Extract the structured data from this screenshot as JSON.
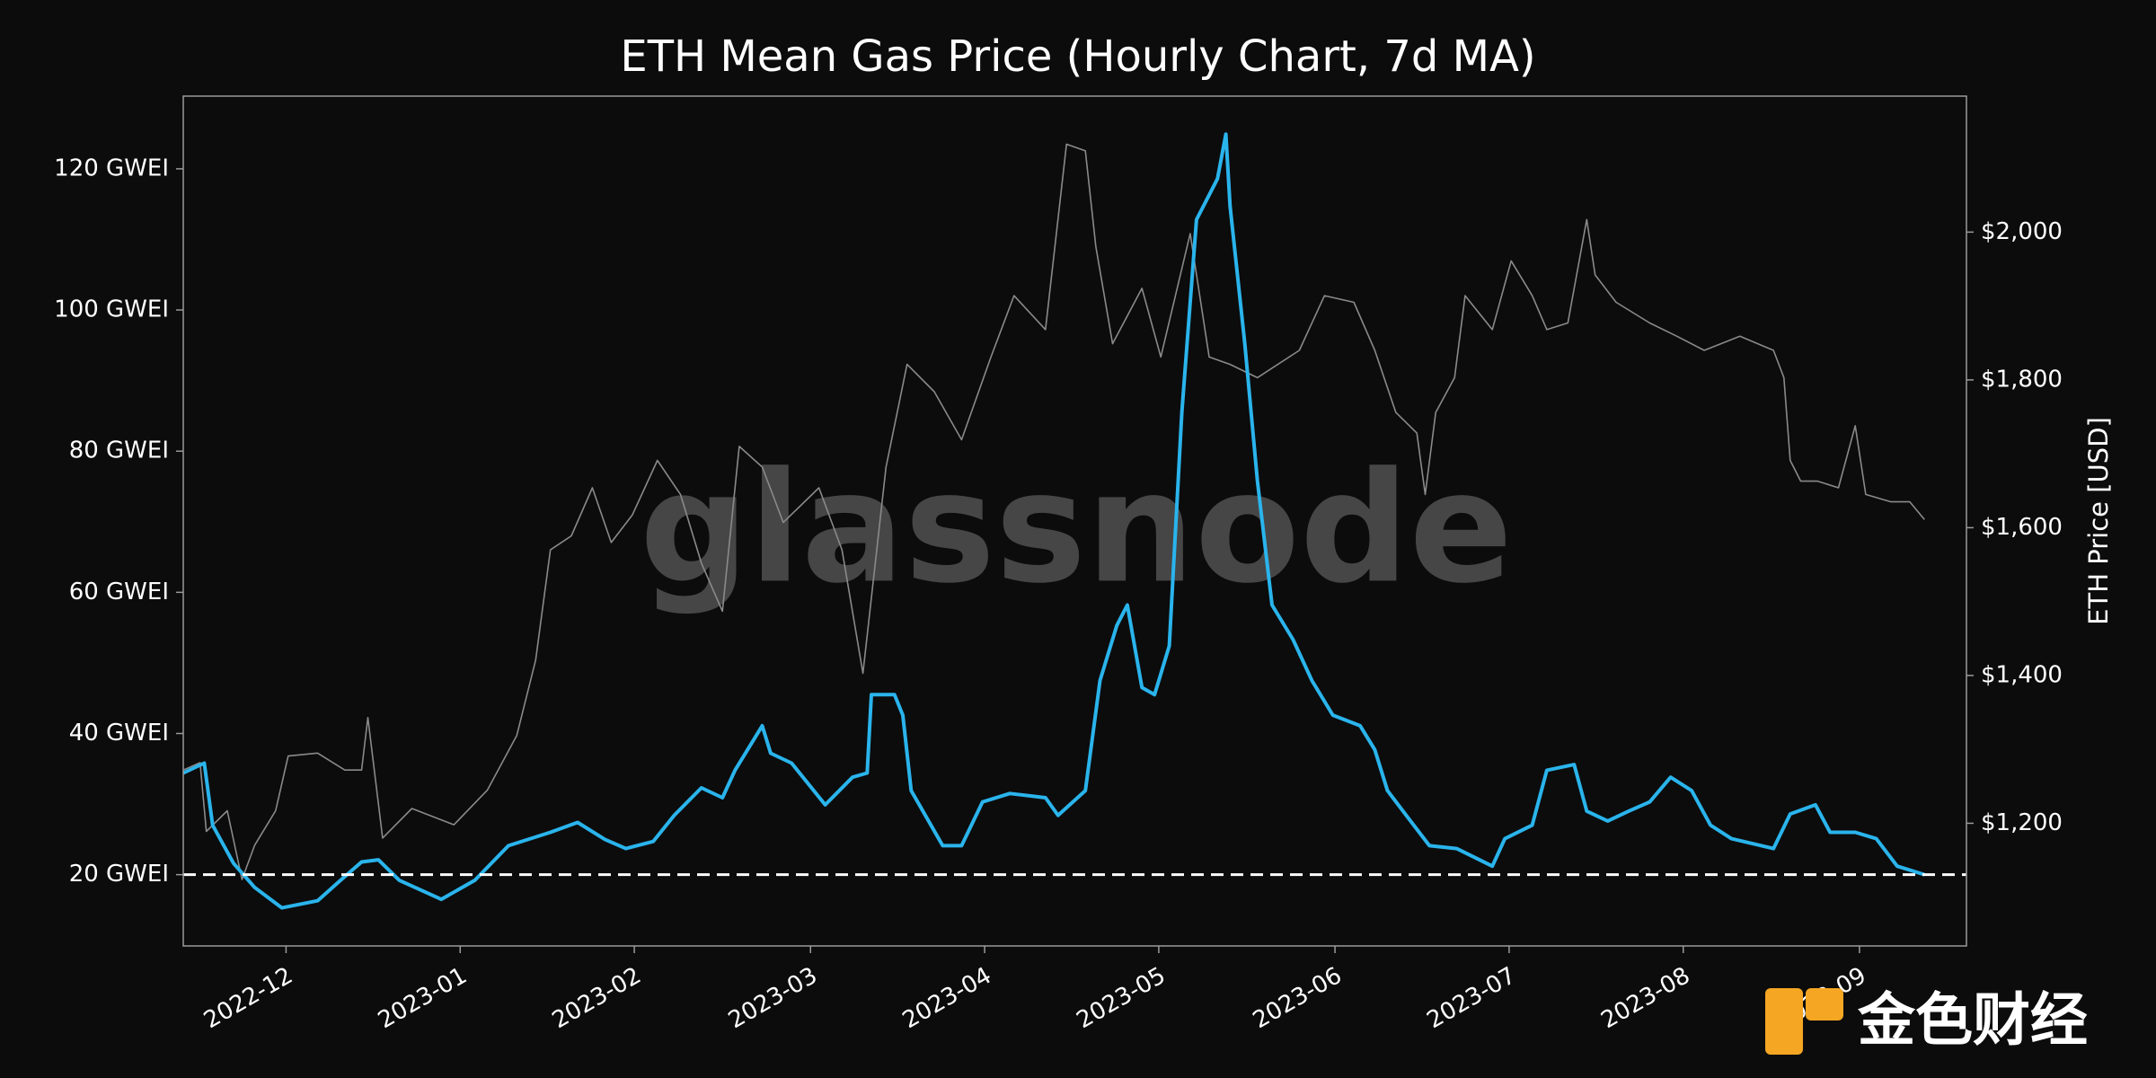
{
  "chart_data": {
    "type": "line",
    "title": "ETH Mean Gas Price (Hourly Chart, 7d MA)",
    "y2label": "ETH Price [USD]",
    "watermark": "glassnode",
    "logo_text": "金色财经",
    "hline": 20,
    "xlim": [
      2022.868,
      2023.718
    ],
    "xticks": [
      {
        "value": 2022.917,
        "label": "2022-12"
      },
      {
        "value": 2023.0,
        "label": "2023-01"
      },
      {
        "value": 2023.083,
        "label": "2023-02"
      },
      {
        "value": 2023.167,
        "label": "2023-03"
      },
      {
        "value": 2023.25,
        "label": "2023-04"
      },
      {
        "value": 2023.333,
        "label": "2023-05"
      },
      {
        "value": 2023.417,
        "label": "2023-06"
      },
      {
        "value": 2023.5,
        "label": "2023-07"
      },
      {
        "value": 2023.583,
        "label": "2023-08"
      },
      {
        "value": 2023.667,
        "label": "2023-09"
      }
    ],
    "ylim": [
      9.9,
      130.3
    ],
    "yticks": [
      {
        "value": 20,
        "label": "20 GWEI"
      },
      {
        "value": 40,
        "label": "40 GWEI"
      },
      {
        "value": 60,
        "label": "60 GWEI"
      },
      {
        "value": 80,
        "label": "80 GWEI"
      },
      {
        "value": 100,
        "label": "100 GWEI"
      },
      {
        "value": 120,
        "label": "120 GWEI"
      }
    ],
    "y2lim": [
      1034,
      2184
    ],
    "y2ticks": [
      {
        "value": 1200,
        "label": "$1,200"
      },
      {
        "value": 1400,
        "label": "$1,400"
      },
      {
        "value": 1600,
        "label": "$1,600"
      },
      {
        "value": 1800,
        "label": "$1,800"
      },
      {
        "value": 2000,
        "label": "$2,000"
      }
    ],
    "series": [
      {
        "color": "#8a8a8a",
        "axis": "y2",
        "x": [
          2022.868,
          2022.876,
          2022.879,
          2022.889,
          2022.896,
          2022.902,
          2022.912,
          2022.918,
          2022.932,
          2022.945,
          2022.953,
          2022.956,
          2022.963,
          2022.977,
          2022.997,
          2023.013,
          2023.027,
          2023.036,
          2023.043,
          2023.053,
          2023.063,
          2023.072,
          2023.082,
          2023.094,
          2023.105,
          2023.115,
          2023.125,
          2023.133,
          2023.144,
          2023.154,
          2023.171,
          2023.182,
          2023.192,
          2023.203,
          2023.213,
          2023.226,
          2023.239,
          2023.253,
          2023.264,
          2023.279,
          2023.289,
          2023.298,
          2023.303,
          2023.311,
          2023.325,
          2023.334,
          2023.348,
          2023.357,
          2023.367,
          2023.38,
          2023.4,
          2023.412,
          2023.426,
          2023.436,
          2023.446,
          2023.456,
          2023.46,
          2023.465,
          2023.474,
          2023.479,
          2023.492,
          2023.501,
          2023.511,
          2023.518,
          2023.528,
          2023.537,
          2023.541,
          2023.551,
          2023.567,
          2023.58,
          2023.593,
          2023.61,
          2023.626,
          2023.631,
          2023.634,
          2023.639,
          2023.647,
          2023.657,
          2023.665,
          2023.67,
          2023.682,
          2023.691,
          2023.698
        ],
        "values": [
          1272,
          1282,
          1189,
          1217,
          1124,
          1170,
          1217,
          1291,
          1295,
          1272,
          1272,
          1343,
          1180,
          1220,
          1198,
          1245,
          1319,
          1421,
          1570,
          1589,
          1654,
          1580,
          1617,
          1691,
          1645,
          1552,
          1487,
          1710,
          1682,
          1607,
          1654,
          1570,
          1403,
          1682,
          1821,
          1784,
          1719,
          1831,
          1914,
          1868,
          2119,
          2110,
          1980,
          1849,
          1924,
          1831,
          1998,
          1831,
          1821,
          1803,
          1840,
          1914,
          1905,
          1840,
          1756,
          1728,
          1645,
          1756,
          1803,
          1914,
          1868,
          1961,
          1914,
          1868,
          1877,
          2017,
          1942,
          1905,
          1877,
          1859,
          1840,
          1859,
          1840,
          1803,
          1691,
          1663,
          1663,
          1654,
          1738,
          1645,
          1635,
          1635,
          1611
        ]
      },
      {
        "color": "#2ab4ec",
        "x": [
          2022.868,
          2022.878,
          2022.882,
          2022.892,
          2022.902,
          2022.915,
          2022.932,
          2022.943,
          2022.953,
          2022.961,
          2022.971,
          2022.991,
          2023.007,
          2023.023,
          2023.043,
          2023.056,
          2023.069,
          2023.079,
          2023.092,
          2023.102,
          2023.115,
          2023.125,
          2023.131,
          2023.144,
          2023.148,
          2023.158,
          2023.174,
          2023.187,
          2023.194,
          2023.196,
          2023.207,
          2023.211,
          2023.215,
          2023.23,
          2023.239,
          2023.249,
          2023.262,
          2023.279,
          2023.285,
          2023.298,
          2023.305,
          2023.313,
          2023.318,
          2023.325,
          2023.331,
          2023.338,
          2023.344,
          2023.351,
          2023.361,
          2023.365,
          2023.367,
          2023.374,
          2023.38,
          2023.387,
          2023.397,
          2023.406,
          2023.416,
          2023.429,
          2023.436,
          2023.442,
          2023.452,
          2023.462,
          2023.475,
          2023.492,
          2023.498,
          2023.511,
          2023.518,
          2023.531,
          2023.537,
          2023.547,
          2023.557,
          2023.567,
          2023.577,
          2023.587,
          2023.596,
          2023.606,
          2023.626,
          2023.634,
          2023.646,
          2023.653,
          2023.665,
          2023.675,
          2023.685,
          2023.698
        ],
        "values": [
          34.4,
          35.8,
          27.0,
          21.6,
          18.2,
          15.3,
          16.3,
          19.2,
          21.8,
          22.1,
          19.2,
          16.5,
          19.2,
          24.1,
          26.0,
          27.4,
          25.0,
          23.7,
          24.7,
          28.4,
          32.3,
          30.9,
          34.8,
          41.1,
          37.2,
          35.8,
          29.9,
          33.8,
          34.4,
          45.5,
          45.5,
          42.6,
          31.9,
          24.1,
          24.1,
          30.3,
          31.5,
          30.9,
          28.4,
          31.9,
          47.5,
          55.3,
          58.2,
          46.5,
          45.5,
          52.4,
          85.5,
          112.8,
          118.6,
          124.9,
          114.7,
          95.2,
          75.8,
          58.2,
          53.3,
          47.5,
          42.6,
          41.1,
          37.7,
          31.9,
          28.0,
          24.1,
          23.7,
          21.2,
          25.1,
          27.0,
          34.8,
          35.6,
          29.0,
          27.6,
          29.0,
          30.3,
          33.8,
          31.9,
          27.0,
          25.1,
          23.7,
          28.6,
          29.9,
          26.0,
          26.0,
          25.1,
          21.2,
          20.0
        ]
      }
    ]
  }
}
